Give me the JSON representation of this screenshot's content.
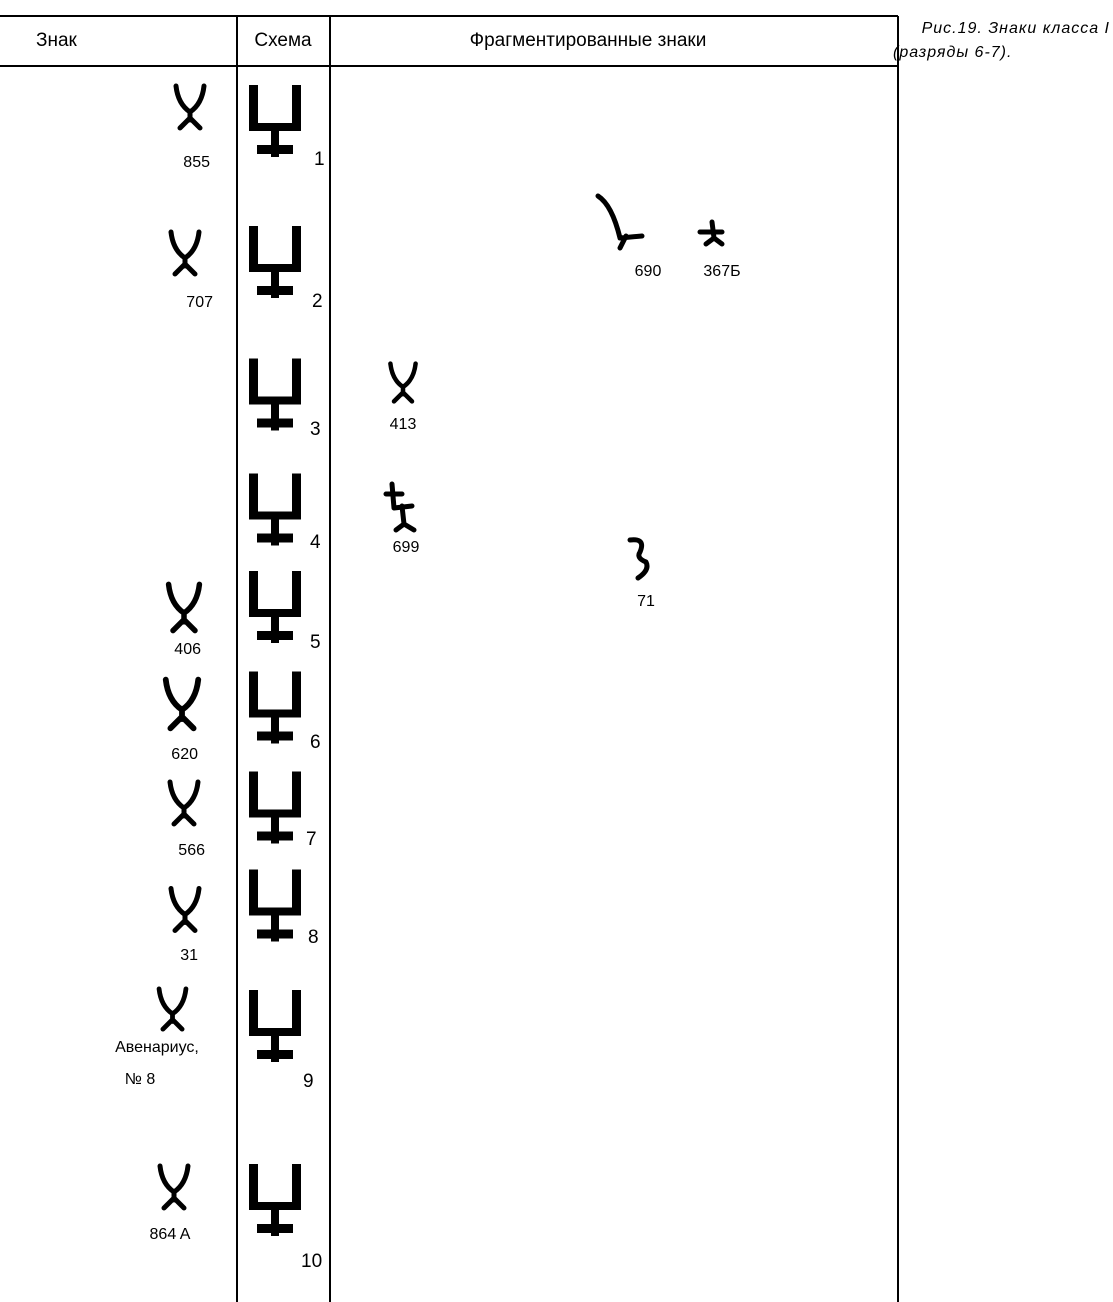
{
  "caption": [
    "Рис.19. Знаки класса I",
    "(разряды 6-7)."
  ],
  "table": {
    "headers": [
      "Знак",
      "Схема",
      "Фрагментированные знаки"
    ],
    "signs": [
      "855",
      "707",
      "406",
      "620",
      "566",
      "31",
      [
        "Авенариус,",
        "№ 8"
      ],
      "864 A"
    ],
    "schemes": [
      "1",
      "2",
      "3",
      "4",
      "5",
      "6",
      "7",
      "8",
      "9",
      "10"
    ],
    "fragments": [
      "690",
      "367Б",
      "413",
      "699",
      "71"
    ]
  }
}
